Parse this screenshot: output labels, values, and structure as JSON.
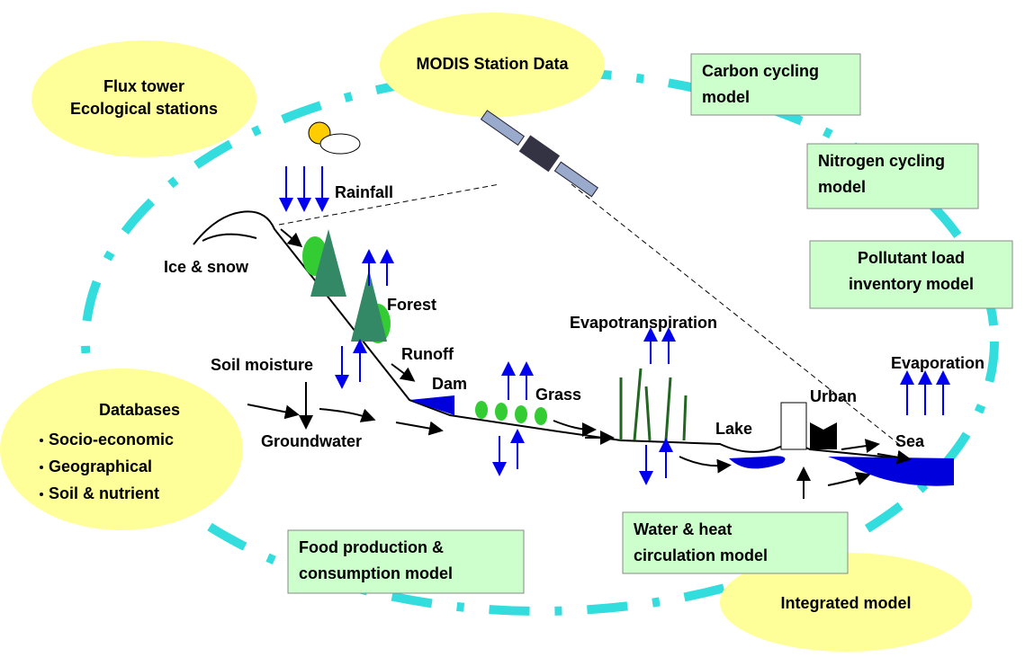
{
  "ellipses": [
    {
      "lines": [
        "MODIS Station Data"
      ]
    },
    {
      "lines": [
        "Flux tower",
        "Ecological stations"
      ]
    },
    {
      "lines": [
        "Integrated model"
      ]
    }
  ],
  "databases": {
    "title": "Databases",
    "items": [
      "Socio-economic",
      "Geographical",
      "Soil & nutrient"
    ]
  },
  "model_boxes": [
    {
      "lines": [
        "Carbon cycling",
        "model"
      ]
    },
    {
      "lines": [
        "Nitrogen cycling",
        "model"
      ]
    },
    {
      "lines": [
        "Pollutant load",
        "inventory model"
      ]
    },
    {
      "lines": [
        "Food production &",
        "consumption model"
      ]
    },
    {
      "lines": [
        "Water & heat",
        "circulation model"
      ]
    }
  ],
  "labels": [
    "Rainfall",
    "Ice & snow",
    "Forest",
    "Runoff",
    "Soil moisture",
    "Dam",
    "Grass",
    "Evapotranspiration",
    "Groundwater",
    "Lake",
    "Urban",
    "Sea",
    "Evaporation"
  ]
}
